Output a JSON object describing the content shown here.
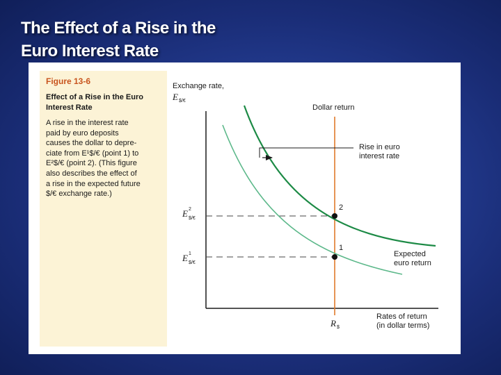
{
  "slide": {
    "title_line1": "The Effect of a Rise in the",
    "title_line2": "Euro Interest Rate"
  },
  "caption": {
    "figure_number": "Figure 13-6",
    "figure_title_line1": "Effect of a Rise in the Euro",
    "figure_title_line2": "Interest Rate",
    "body": [
      "A rise in the interest rate",
      "paid by euro deposits",
      "causes the dollar to depre-",
      "ciate from E¹$/€ (point 1) to",
      "E²$/€ (point 2). (This figure",
      "also describes the effect of",
      "a rise in the expected future",
      "$/€ exchange rate.)"
    ]
  },
  "diagram": {
    "y_axis_label": "Exchange rate,",
    "y_axis_symbol": "E",
    "y_axis_symbol_sub": "$/€",
    "x_axis_label_line1": "Rates of return",
    "x_axis_label_line2": "(in dollar terms)",
    "dollar_return_label": "Dollar return",
    "shift_label_line1": "Rise in euro",
    "shift_label_line2": "interest rate",
    "expected_return_label_line1": "Expected",
    "expected_return_label_line2": "euro return",
    "point_1_label": "1",
    "point_2_label": "2",
    "e1_symbol": "E",
    "e1_sup": "1",
    "e1_sub": "$/€",
    "e2_symbol": "E",
    "e2_sup": "2",
    "e2_sub": "$/€",
    "r_symbol": "R",
    "r_sub": "$",
    "colors": {
      "dollar_return_line": "#e07a2a",
      "old_expected_curve": "#5cb88a",
      "new_expected_curve": "#1c8a45",
      "point": "#111111"
    }
  }
}
